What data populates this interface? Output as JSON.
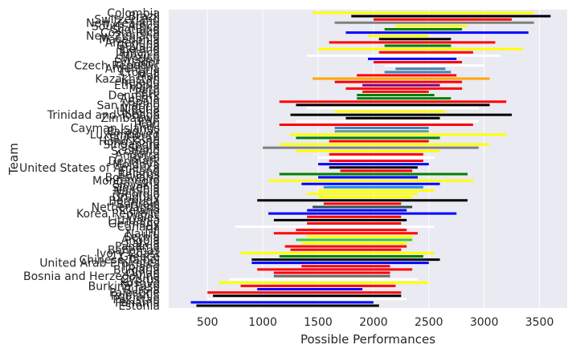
{
  "chart_data": {
    "type": "range-bar",
    "title": "",
    "xlabel": "Possible Performances",
    "ylabel": "Team",
    "xlim": [
      150,
      3750
    ],
    "xticks": [
      500,
      1000,
      1500,
      2000,
      2500,
      3000,
      3500
    ],
    "grid": true,
    "teams": [
      {
        "team": "Colombia",
        "low": 1450,
        "high": 3450,
        "color": "#ffff00"
      },
      {
        "team": "Brazil",
        "low": 1800,
        "high": 3600,
        "color": "#000000"
      },
      {
        "team": "Switzerland",
        "low": 2000,
        "high": 3250,
        "color": "#ff0000"
      },
      {
        "team": "New Zealand",
        "low": 1650,
        "high": 3450,
        "color": "#808080"
      },
      {
        "team": "South Africa",
        "low": 2200,
        "high": 2850,
        "color": "#ffff00"
      },
      {
        "team": "Scotland",
        "low": 2100,
        "high": 2800,
        "color": "#008000"
      },
      {
        "team": "Costa Rica",
        "low": 1750,
        "high": 3400,
        "color": "#0000ff"
      },
      {
        "team": "New Zealand",
        "low": 1950,
        "high": 2500,
        "color": "#ffff00"
      },
      {
        "team": "Macedonia",
        "low": 2050,
        "high": 2700,
        "color": "#000000"
      },
      {
        "team": "Argentina",
        "low": 1600,
        "high": 3100,
        "color": "#ff0000"
      },
      {
        "team": "Guyana",
        "low": 2100,
        "high": 2700,
        "color": "#008000"
      },
      {
        "team": "Iceland",
        "low": 1500,
        "high": 3350,
        "color": "#ffff00"
      },
      {
        "team": "Jamaica",
        "low": 2050,
        "high": 2900,
        "color": "#ff0000"
      },
      {
        "team": "Mexico",
        "low": 1400,
        "high": 3150,
        "color": "#ffffff"
      },
      {
        "team": "Sweden",
        "low": 1950,
        "high": 2750,
        "color": "#0000ff"
      },
      {
        "team": "Ecuador",
        "low": 2000,
        "high": 2800,
        "color": "#ff0000"
      },
      {
        "team": "Czech Republic",
        "low": 2100,
        "high": 3000,
        "color": "#ffffff"
      },
      {
        "team": "Argentina",
        "low": 2200,
        "high": 2650,
        "color": "#4682b4"
      },
      {
        "team": "Croatia",
        "low": 2100,
        "high": 2700,
        "color": "#4682b4"
      },
      {
        "team": "Mali",
        "low": 1850,
        "high": 2750,
        "color": "#ff0000"
      },
      {
        "team": "Kazakhstan",
        "low": 1450,
        "high": 3050,
        "color": "#ffa500"
      },
      {
        "team": "Ireland",
        "low": 1650,
        "high": 2800,
        "color": "#ff0000"
      },
      {
        "team": "Ethiopia",
        "low": 1900,
        "high": 2600,
        "color": "#800080"
      },
      {
        "team": "Malta",
        "low": 1750,
        "high": 2800,
        "color": "#ff0000"
      },
      {
        "team": "Peru",
        "low": 1900,
        "high": 2500,
        "color": "#ff0000"
      },
      {
        "team": "Denmark",
        "low": 1850,
        "high": 2550,
        "color": "#008000"
      },
      {
        "team": "Austria",
        "low": 1850,
        "high": 2700,
        "color": "#008000"
      },
      {
        "team": "Spain",
        "low": 1150,
        "high": 3200,
        "color": "#ff0000"
      },
      {
        "team": "San Marino",
        "low": 1300,
        "high": 3050,
        "color": "#000000"
      },
      {
        "team": "Nigeria",
        "low": 1400,
        "high": 2950,
        "color": "#ffffff"
      },
      {
        "team": "Ukraine",
        "low": 1650,
        "high": 2650,
        "color": "#ffff00"
      },
      {
        "team": "Trinidad and Tobago",
        "low": 1250,
        "high": 3250,
        "color": "#000000"
      },
      {
        "team": "Zimbabwe",
        "low": 1750,
        "high": 2600,
        "color": "#000000"
      },
      {
        "team": "Iran",
        "low": 1300,
        "high": 2950,
        "color": "#ffffff"
      },
      {
        "team": "Haiti",
        "low": 1150,
        "high": 2900,
        "color": "#ff0000"
      },
      {
        "team": "Cayman Islands",
        "low": 1650,
        "high": 2500,
        "color": "#4682b4"
      },
      {
        "team": "Paraguay",
        "low": 1650,
        "high": 2500,
        "color": "#5f9ea0"
      },
      {
        "team": "Luxembourg",
        "low": 1250,
        "high": 3200,
        "color": "#ffff00"
      },
      {
        "team": "Tajikistan",
        "low": 1300,
        "high": 2600,
        "color": "#008000"
      },
      {
        "team": "Hong Kong",
        "low": 1600,
        "high": 2500,
        "color": "#ff0000"
      },
      {
        "team": "Singapore",
        "low": 1150,
        "high": 3050,
        "color": "#ffff00"
      },
      {
        "team": "Spain",
        "low": 1000,
        "high": 2950,
        "color": "#808080"
      },
      {
        "team": "Scotland",
        "low": 1300,
        "high": 2600,
        "color": "#ffff00"
      },
      {
        "team": "Andorra",
        "low": 1600,
        "high": 2450,
        "color": "#ff0000"
      },
      {
        "team": "Israel",
        "low": 1500,
        "high": 2550,
        "color": "#ffffff"
      },
      {
        "team": "Denmark",
        "low": 1600,
        "high": 2450,
        "color": "#ff0000"
      },
      {
        "team": "Moldova",
        "low": 1500,
        "high": 2500,
        "color": "#0000ff"
      },
      {
        "team": "United States of America",
        "low": 1600,
        "high": 2400,
        "color": "#000000"
      },
      {
        "team": "Finland",
        "low": 1700,
        "high": 2350,
        "color": "#ff0000"
      },
      {
        "team": "Belarus",
        "low": 1150,
        "high": 2850,
        "color": "#008000"
      },
      {
        "team": "Botswana",
        "low": 1500,
        "high": 2400,
        "color": "#0000ff"
      },
      {
        "team": "Montenegro",
        "low": 1050,
        "high": 2900,
        "color": "#ffff00"
      },
      {
        "team": "Slovakia",
        "low": 1350,
        "high": 2600,
        "color": "#0000ff"
      },
      {
        "team": "Slovenia",
        "low": 1550,
        "high": 2450,
        "color": "#1e90ff"
      },
      {
        "team": "Namibia",
        "low": 1500,
        "high": 2550,
        "color": "#ffff00"
      },
      {
        "team": "Georgia",
        "low": 1400,
        "high": 2400,
        "color": "#ffff00"
      },
      {
        "team": "Uruguay",
        "low": 1500,
        "high": 2350,
        "color": "#ffff00"
      },
      {
        "team": "Bermuda",
        "low": 950,
        "high": 2850,
        "color": "#000000"
      },
      {
        "team": "Bahrain",
        "low": 1550,
        "high": 2250,
        "color": "#ff0000"
      },
      {
        "team": "Netherlands",
        "low": 1450,
        "high": 2350,
        "color": "#2f4f4f"
      },
      {
        "team": "Iceland",
        "low": 1400,
        "high": 2300,
        "color": "#0000ff"
      },
      {
        "team": "Korea Republic",
        "low": 1050,
        "high": 2750,
        "color": "#0000ff"
      },
      {
        "team": "Wales",
        "low": 1400,
        "high": 2250,
        "color": "#ff0000"
      },
      {
        "team": "Lithuania",
        "low": 1100,
        "high": 2300,
        "color": "#000000"
      },
      {
        "team": "Germany",
        "low": 1400,
        "high": 2250,
        "color": "#ff0000"
      },
      {
        "team": "Canada",
        "low": 750,
        "high": 2550,
        "color": "#ffffff"
      },
      {
        "team": "Fiji",
        "low": 1300,
        "high": 2300,
        "color": "#ff0000"
      },
      {
        "team": "Nauru",
        "low": 1100,
        "high": 2400,
        "color": "#ff0000"
      },
      {
        "team": "Serbia",
        "low": 1400,
        "high": 2350,
        "color": "#ffff00"
      },
      {
        "team": "Angola",
        "low": 1300,
        "high": 2350,
        "color": "#32cd32"
      },
      {
        "team": "Latvia",
        "low": 1350,
        "high": 2300,
        "color": "#ffff00"
      },
      {
        "team": "Panama",
        "low": 1200,
        "high": 2300,
        "color": "#ff0000"
      },
      {
        "team": "Bahamas",
        "low": 1250,
        "high": 2250,
        "color": "#ff0000"
      },
      {
        "team": "Ivory Coast",
        "low": 800,
        "high": 2550,
        "color": "#ffff00"
      },
      {
        "team": "Greece",
        "low": 1150,
        "high": 2450,
        "color": "#008000"
      },
      {
        "team": "Chinese Taipei",
        "low": 900,
        "high": 2600,
        "color": "#000000"
      },
      {
        "team": "United Arab Emirates",
        "low": 900,
        "high": 2500,
        "color": "#0000ff"
      },
      {
        "team": "Poland",
        "low": 1350,
        "high": 2150,
        "color": "#ff0000"
      },
      {
        "team": "Bulgaria",
        "low": 950,
        "high": 2350,
        "color": "#ff0000"
      },
      {
        "team": "Oman",
        "low": 1100,
        "high": 2150,
        "color": "#ff0000"
      },
      {
        "team": "Bosnia and Herzegovina",
        "low": 1100,
        "high": 2150,
        "color": "#696969"
      },
      {
        "team": "Cyprus",
        "low": 700,
        "high": 2400,
        "color": "#ffffff"
      },
      {
        "team": "Kosovo",
        "low": 600,
        "high": 2500,
        "color": "#ffff00"
      },
      {
        "team": "Burkina Faso",
        "low": 800,
        "high": 2200,
        "color": "#ff0000"
      },
      {
        "team": "Russia",
        "low": 950,
        "high": 1900,
        "color": "#0000ff"
      },
      {
        "team": "Palestine",
        "low": 500,
        "high": 2250,
        "color": "#ff0000"
      },
      {
        "team": "Romania",
        "low": 550,
        "high": 2250,
        "color": "#000000"
      },
      {
        "team": "Pakistan",
        "low": 500,
        "high": 2300,
        "color": "#ffffff"
      },
      {
        "team": "Panama",
        "low": 350,
        "high": 2000,
        "color": "#0000ff"
      },
      {
        "team": "Estonia",
        "low": 400,
        "high": 2050,
        "color": "#000000"
      }
    ]
  }
}
